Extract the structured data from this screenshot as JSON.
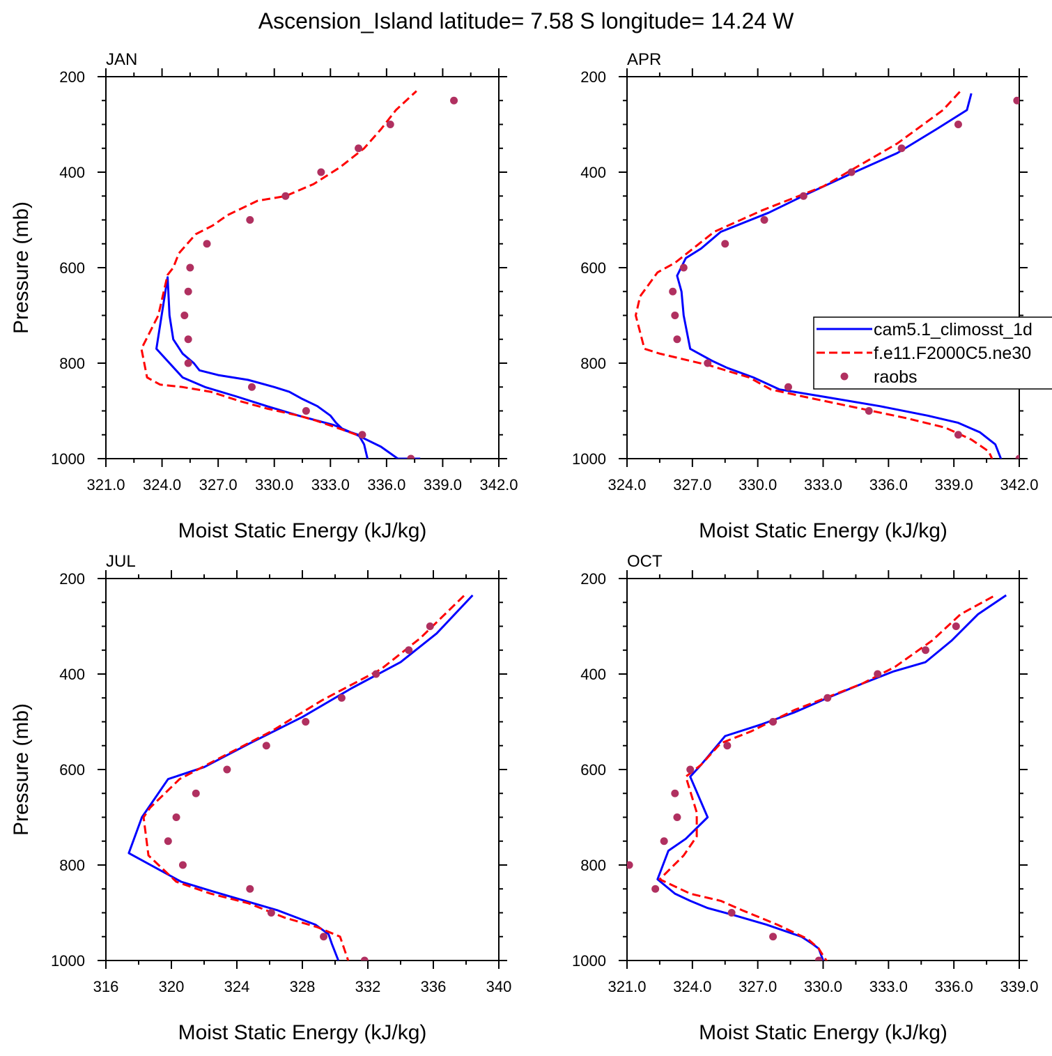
{
  "figure": {
    "title": "Ascension_Island  latitude= 7.58 S longitude= 14.24 W"
  },
  "legend": {
    "entries": [
      {
        "name": "cam5.1_climosst_1d",
        "color": "#0000ff",
        "dash": "solid",
        "marker": "none"
      },
      {
        "name": "f.e11.F2000C5.ne30",
        "color": "#ff0000",
        "dash": "dashed",
        "marker": "none"
      },
      {
        "name": "raobs",
        "color": "#b03060",
        "dash": "none",
        "marker": "dot"
      }
    ]
  },
  "chart_data": [
    {
      "type": "line",
      "panel_label": "JAN",
      "xlabel": "Moist Static Energy (kJ/kg)",
      "ylabel": "Pressure (mb)",
      "xlim": [
        321.0,
        342.0
      ],
      "xticks": [
        "321.0",
        "324.0",
        "327.0",
        "330.0",
        "333.0",
        "336.0",
        "339.0",
        "342.0"
      ],
      "ylim": [
        200,
        1000
      ],
      "yticks": [
        "200",
        "400",
        "600",
        "800",
        "1000"
      ],
      "y_inverted": true,
      "series": [
        {
          "name": "cam5.1_climosst_1d",
          "color": "#0000ff",
          "x": [
            335.0,
            334.8,
            334.5,
            333.7,
            333.3,
            333.0,
            332.3,
            331.5,
            330.8,
            330.0,
            328.6,
            327.0,
            326.0,
            325.7,
            325.1,
            324.6,
            324.4,
            324.3,
            323.7,
            325.1,
            326.3,
            328.0,
            329.6,
            331.3,
            333.2,
            334.4,
            335.7,
            336.6,
            337.8
          ],
          "y": [
            1003,
            970,
            950,
            940,
            925,
            910,
            890,
            875,
            860,
            850,
            835,
            825,
            815,
            800,
            780,
            750,
            700,
            620,
            770,
            830,
            850,
            870,
            890,
            910,
            930,
            950,
            975,
            1000,
            1000
          ]
        },
        {
          "name": "f.e11.F2000C5.ne30",
          "color": "#ff0000",
          "x": [
            334.4,
            333.7,
            332.2,
            331.3,
            329.6,
            328.2,
            326.6,
            325.1,
            323.9,
            323.2,
            322.9,
            323.8,
            324.3,
            324.6,
            324.9,
            325.8,
            326.7,
            327.5,
            329.1,
            330.6,
            332.1,
            333.5,
            334.8,
            335.7,
            336.5,
            337.6
          ],
          "y": [
            950,
            940,
            920,
            910,
            895,
            880,
            860,
            850,
            845,
            830,
            770,
            700,
            615,
            600,
            570,
            530,
            512,
            490,
            460,
            450,
            425,
            390,
            350,
            310,
            270,
            230
          ]
        },
        {
          "name": "raobs",
          "color": "#b03060",
          "x": [
            337.3,
            334.7,
            331.7,
            328.8,
            325.4,
            325.4,
            325.2,
            325.4,
            325.5,
            326.4,
            328.7,
            330.6,
            332.5,
            334.5,
            336.2,
            339.6
          ],
          "y": [
            1000,
            950,
            900,
            850,
            800,
            750,
            700,
            650,
            600,
            550,
            500,
            450,
            400,
            350,
            300,
            250
          ]
        }
      ]
    },
    {
      "type": "line",
      "panel_label": "APR",
      "xlabel": "Moist Static Energy (kJ/kg)",
      "ylabel": "",
      "xlim": [
        324.0,
        342.0
      ],
      "xticks": [
        "324.0",
        "327.0",
        "330.0",
        "333.0",
        "336.0",
        "339.0",
        "342.0"
      ],
      "ylim": [
        200,
        1000
      ],
      "yticks": [
        "200",
        "400",
        "600",
        "800",
        "1000"
      ],
      "y_inverted": true,
      "series": [
        {
          "name": "cam5.1_climosst_1d",
          "color": "#0000ff",
          "x": [
            341.2,
            340.9,
            340.2,
            339.2,
            337.8,
            335.6,
            333.0,
            331.0,
            329.8,
            328.6,
            327.9,
            326.9,
            326.6,
            326.5,
            326.3,
            326.7,
            327.4,
            328.3,
            330.5,
            332.3,
            334.2,
            336.4,
            338.2,
            339.6,
            339.8
          ],
          "y": [
            1005,
            970,
            945,
            925,
            910,
            890,
            870,
            855,
            830,
            810,
            795,
            770,
            700,
            650,
            617,
            580,
            560,
            525,
            485,
            445,
            405,
            360,
            310,
            270,
            235
          ]
        },
        {
          "name": "f.e11.F2000C5.ne30",
          "color": "#ff0000",
          "x": [
            340.8,
            340.6,
            339.8,
            338.6,
            336.8,
            334.2,
            332.1,
            330.6,
            329.6,
            327.8,
            325.5,
            324.8,
            324.4,
            324.6,
            325.4,
            326.2,
            328.0,
            330.2,
            333.0,
            336.4,
            338.5,
            339.3
          ],
          "y": [
            1005,
            985,
            960,
            935,
            915,
            890,
            870,
            855,
            830,
            805,
            780,
            770,
            700,
            660,
            610,
            590,
            525,
            480,
            430,
            340,
            270,
            230
          ]
        },
        {
          "name": "raobs",
          "color": "#b03060",
          "x": [
            342.0,
            339.2,
            335.1,
            331.4,
            327.7,
            326.3,
            326.2,
            326.1,
            326.6,
            328.5,
            330.3,
            332.1,
            334.3,
            336.6,
            339.2,
            341.9
          ],
          "y": [
            1000,
            950,
            900,
            850,
            800,
            750,
            700,
            650,
            600,
            550,
            500,
            450,
            400,
            350,
            300,
            250
          ]
        }
      ]
    },
    {
      "type": "line",
      "panel_label": "JUL",
      "xlabel": "Moist Static Energy (kJ/kg)",
      "ylabel": "Pressure (mb)",
      "xlim": [
        316,
        340
      ],
      "xticks": [
        "316",
        "320",
        "324",
        "328",
        "332",
        "336",
        "340"
      ],
      "ylim": [
        200,
        1000
      ],
      "yticks": [
        "200",
        "400",
        "600",
        "800",
        "1000"
      ],
      "y_inverted": true,
      "series": [
        {
          "name": "cam5.1_climosst_1d",
          "color": "#0000ff",
          "x": [
            330.2,
            329.8,
            329.6,
            328.8,
            326.5,
            324.0,
            322.5,
            320.6,
            317.4,
            318.2,
            319.8,
            322.0,
            324.8,
            328.0,
            331.0,
            334.0,
            336.2,
            338.4
          ],
          "y": [
            1000,
            965,
            945,
            925,
            895,
            870,
            855,
            835,
            775,
            700,
            620,
            595,
            545,
            490,
            430,
            375,
            315,
            235
          ]
        },
        {
          "name": "f.e11.F2000C5.ne30",
          "color": "#ff0000",
          "x": [
            330.9,
            330.6,
            330.3,
            328.9,
            326.9,
            324.7,
            322.4,
            320.3,
            318.6,
            318.3,
            318.7,
            320.5,
            323.0,
            326.1,
            329.2,
            332.8,
            335.2,
            337.9
          ],
          "y": [
            1010,
            980,
            950,
            930,
            910,
            880,
            860,
            835,
            780,
            700,
            680,
            620,
            575,
            520,
            455,
            390,
            325,
            235
          ]
        },
        {
          "name": "raobs",
          "color": "#b03060",
          "x": [
            331.8,
            329.3,
            326.1,
            324.8,
            320.7,
            319.8,
            320.3,
            321.5,
            323.4,
            325.8,
            328.2,
            330.4,
            332.5,
            334.5,
            335.8
          ],
          "y": [
            1000,
            950,
            900,
            850,
            800,
            750,
            700,
            650,
            600,
            550,
            500,
            450,
            400,
            350,
            300
          ]
        }
      ]
    },
    {
      "type": "line",
      "panel_label": "OCT",
      "xlabel": "Moist Static Energy (kJ/kg)",
      "ylabel": "",
      "xlim": [
        321.0,
        339.0
      ],
      "xticks": [
        "321.0",
        "324.0",
        "327.0",
        "330.0",
        "333.0",
        "336.0",
        "339.0"
      ],
      "ylim": [
        200,
        1000
      ],
      "yticks": [
        "200",
        "400",
        "600",
        "800",
        "1000"
      ],
      "y_inverted": true,
      "series": [
        {
          "name": "cam5.1_climosst_1d",
          "color": "#0000ff",
          "x": [
            330.0,
            329.8,
            329.5,
            329.0,
            327.4,
            325.9,
            324.7,
            323.9,
            323.2,
            322.4,
            322.9,
            323.7,
            324.7,
            323.9,
            324.4,
            325.5,
            327.2,
            328.7,
            330.2,
            331.8,
            333.2,
            334.7,
            335.9,
            337.1,
            338.4
          ],
          "y": [
            1000,
            975,
            965,
            950,
            925,
            905,
            890,
            875,
            860,
            830,
            770,
            745,
            700,
            615,
            590,
            530,
            505,
            480,
            450,
            420,
            395,
            375,
            330,
            275,
            235
          ]
        },
        {
          "name": "f.e11.F2000C5.ne30",
          "color": "#ff0000",
          "x": [
            330.3,
            330.0,
            329.8,
            329.3,
            327.9,
            326.3,
            325.3,
            323.9,
            322.5,
            323.6,
            324.2,
            324.2,
            323.7,
            324.4,
            325.3,
            326.7,
            328.7,
            330.4,
            331.8,
            333.3,
            335.0,
            336.3,
            337.9
          ],
          "y": [
            1010,
            990,
            975,
            955,
            925,
            895,
            875,
            860,
            830,
            780,
            740,
            690,
            615,
            590,
            545,
            520,
            475,
            445,
            420,
            385,
            330,
            275,
            235
          ]
        },
        {
          "name": "raobs",
          "color": "#b03060",
          "x": [
            329.8,
            327.7,
            325.8,
            322.3,
            321.1,
            322.7,
            323.3,
            323.2,
            323.9,
            325.6,
            327.7,
            330.2,
            332.5,
            334.7,
            336.1
          ],
          "y": [
            1000,
            950,
            900,
            850,
            800,
            750,
            700,
            650,
            600,
            550,
            500,
            450,
            400,
            350,
            300
          ]
        }
      ]
    }
  ]
}
